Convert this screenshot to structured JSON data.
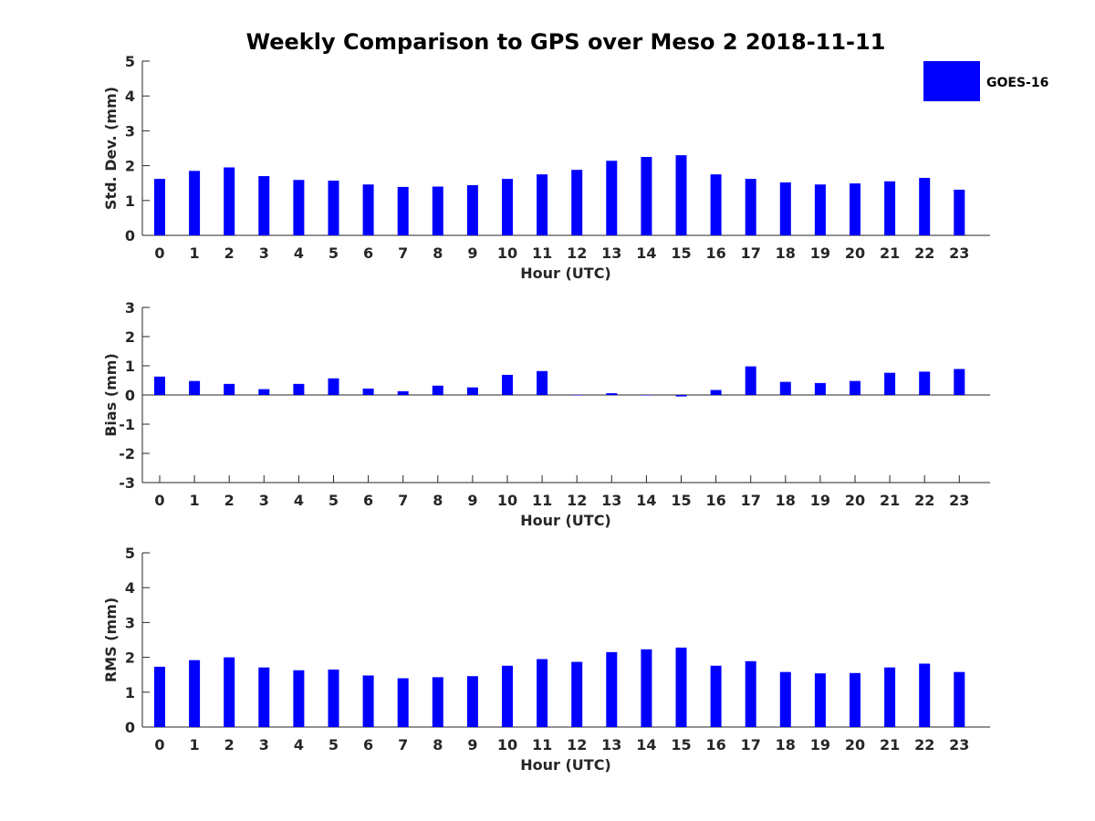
{
  "title": "Weekly Comparison to GPS over Meso 2 2018-11-11",
  "legend": {
    "label": "GOES-16",
    "placement": "top-right"
  },
  "colors": {
    "bar": "#0000ff",
    "axis": "#262626",
    "title": "#000000"
  },
  "chart_data": [
    {
      "type": "bar",
      "name": "std_dev",
      "ylabel": "Std. Dev. (mm)",
      "xlabel": "Hour (UTC)",
      "ylim": [
        0,
        5
      ],
      "yticks": [
        "0",
        "1",
        "2",
        "3",
        "4",
        "5"
      ],
      "categories": [
        "0",
        "1",
        "2",
        "3",
        "4",
        "5",
        "6",
        "7",
        "8",
        "9",
        "10",
        "11",
        "12",
        "13",
        "14",
        "15",
        "16",
        "17",
        "18",
        "19",
        "20",
        "21",
        "22",
        "23"
      ],
      "series": [
        {
          "name": "GOES-16",
          "values": [
            1.62,
            1.85,
            1.95,
            1.7,
            1.59,
            1.57,
            1.46,
            1.39,
            1.4,
            1.44,
            1.62,
            1.75,
            1.88,
            2.14,
            2.25,
            2.3,
            1.75,
            1.62,
            1.52,
            1.46,
            1.49,
            1.55,
            1.65,
            1.31
          ]
        }
      ]
    },
    {
      "type": "bar",
      "name": "bias",
      "ylabel": "Bias (mm)",
      "xlabel": "Hour (UTC)",
      "ylim": [
        -3,
        3
      ],
      "yticks": [
        "-3",
        "-2",
        "-1",
        "0",
        "1",
        "2",
        "3"
      ],
      "categories": [
        "0",
        "1",
        "2",
        "3",
        "4",
        "5",
        "6",
        "7",
        "8",
        "9",
        "10",
        "11",
        "12",
        "13",
        "14",
        "15",
        "16",
        "17",
        "18",
        "19",
        "20",
        "21",
        "22",
        "23"
      ],
      "series": [
        {
          "name": "GOES-16",
          "values": [
            0.63,
            0.48,
            0.38,
            0.2,
            0.38,
            0.57,
            0.22,
            0.13,
            0.32,
            0.26,
            0.69,
            0.82,
            0.0,
            0.06,
            0.0,
            -0.05,
            0.17,
            0.98,
            0.45,
            0.41,
            0.48,
            0.76,
            0.8,
            0.89
          ]
        }
      ]
    },
    {
      "type": "bar",
      "name": "rms",
      "ylabel": "RMS (mm)",
      "xlabel": "Hour (UTC)",
      "ylim": [
        0,
        5
      ],
      "yticks": [
        "0",
        "1",
        "2",
        "3",
        "4",
        "5"
      ],
      "categories": [
        "0",
        "1",
        "2",
        "3",
        "4",
        "5",
        "6",
        "7",
        "8",
        "9",
        "10",
        "11",
        "12",
        "13",
        "14",
        "15",
        "16",
        "17",
        "18",
        "19",
        "20",
        "21",
        "22",
        "23"
      ],
      "series": [
        {
          "name": "GOES-16",
          "values": [
            1.73,
            1.92,
            2.0,
            1.71,
            1.63,
            1.65,
            1.48,
            1.4,
            1.43,
            1.46,
            1.76,
            1.95,
            1.87,
            2.15,
            2.23,
            2.28,
            1.76,
            1.89,
            1.58,
            1.54,
            1.55,
            1.71,
            1.82,
            1.58
          ]
        }
      ]
    }
  ]
}
